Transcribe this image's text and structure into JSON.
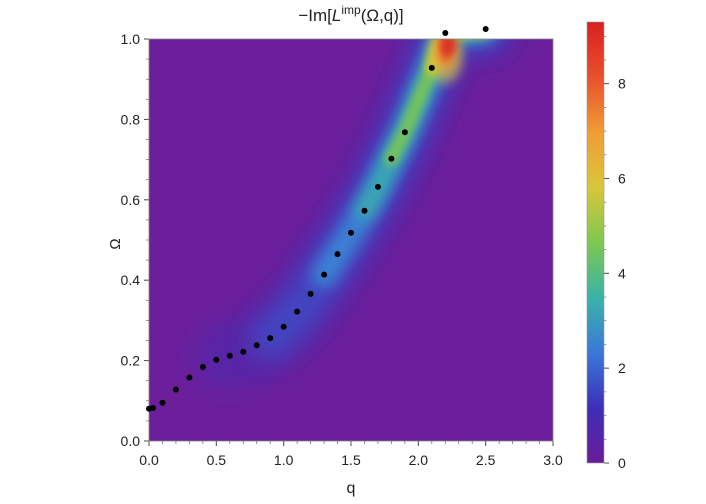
{
  "chart_data": {
    "type": "heatmap",
    "title": {
      "prefix": "−Im[",
      "symbol": "L",
      "superscript": "imp",
      "suffix": "(Ω,q)]"
    },
    "xlabel": "q",
    "ylabel": "Ω",
    "xlim": [
      0.0,
      3.0
    ],
    "ylim": [
      0.0,
      1.0
    ],
    "x_ticks": [
      "0.0",
      "0.5",
      "1.0",
      "1.5",
      "2.0",
      "2.5",
      "3.0"
    ],
    "y_ticks": [
      "0.0",
      "0.2",
      "0.4",
      "0.6",
      "0.8",
      "1.0"
    ],
    "colorbar": {
      "range": [
        0,
        9.3
      ],
      "ticks": [
        "0",
        "2",
        "4",
        "6",
        "8"
      ],
      "colors": [
        "#6a1b9a",
        "#3d2fb8",
        "#3a78d8",
        "#39b3a8",
        "#7ec850",
        "#d9c63a",
        "#f09c35",
        "#e8502c",
        "#d92020"
      ]
    },
    "series": [
      {
        "x": [
          0.0,
          0.03,
          0.1,
          0.2,
          0.3,
          0.4,
          0.5,
          0.6,
          0.7,
          0.8,
          0.9,
          1.0,
          1.1,
          1.2,
          1.3,
          1.4,
          1.5,
          1.6,
          1.7,
          1.8,
          1.9,
          2.1,
          2.2,
          2.5
        ],
        "y": [
          0.08,
          0.082,
          0.095,
          0.128,
          0.158,
          0.184,
          0.202,
          0.212,
          0.222,
          0.238,
          0.256,
          0.284,
          0.322,
          0.366,
          0.414,
          0.465,
          0.518,
          0.573,
          0.632,
          0.702,
          0.768,
          0.928,
          1.015,
          1.025
        ]
      }
    ],
    "grid": false,
    "legend": "colorbar-right"
  }
}
